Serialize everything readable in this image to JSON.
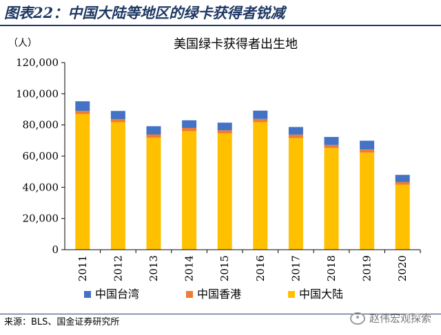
{
  "figure": {
    "title": "图表22：中国大陆等地区的绿卡获得者锐减",
    "source": "来源：BLS、国金证券研究所",
    "watermark": "赵伟宏观探索"
  },
  "chart_data": {
    "type": "bar",
    "stacked": true,
    "title": "美国绿卡获得者出生地",
    "ylabel": "（人）",
    "xlabel": "",
    "ylim": [
      0,
      120000
    ],
    "yticks": [
      0,
      20000,
      40000,
      60000,
      80000,
      100000,
      120000
    ],
    "ytick_labels": [
      "0",
      "20,000",
      "40,000",
      "60,000",
      "80,000",
      "100,000",
      "120,000"
    ],
    "categories": [
      "2011",
      "2012",
      "2013",
      "2014",
      "2015",
      "2016",
      "2017",
      "2018",
      "2019",
      "2020"
    ],
    "series": [
      {
        "name": "中国大陆",
        "color": "#ffc000",
        "values": [
          87000,
          81800,
          71800,
          76000,
          74600,
          81800,
          71600,
          65200,
          62300,
          41700
        ]
      },
      {
        "name": "中国香港",
        "color": "#ed7d31",
        "values": [
          2000,
          2000,
          2100,
          2100,
          2000,
          2100,
          2200,
          2000,
          2000,
          1700
        ]
      },
      {
        "name": "中国台湾",
        "color": "#4472c4",
        "values": [
          6200,
          5200,
          5300,
          4900,
          4900,
          5300,
          4900,
          5100,
          5600,
          4600
        ]
      }
    ],
    "legend": {
      "position": "bottom",
      "order": [
        "中国台湾",
        "中国香港",
        "中国大陆"
      ]
    },
    "grid": false
  }
}
